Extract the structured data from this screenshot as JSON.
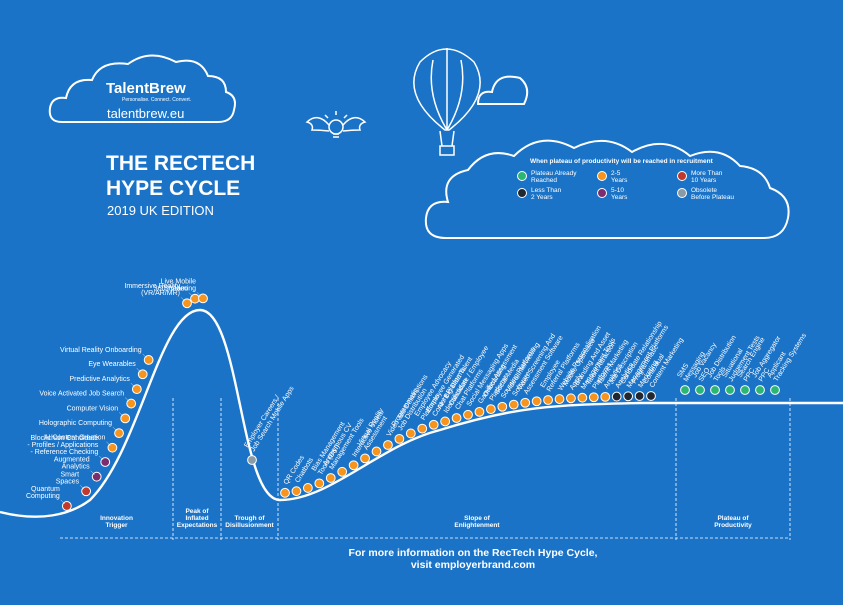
{
  "branding": {
    "logo_text": "TalentBrew",
    "tagline": "Personalise. Connect. Convert.",
    "website": "talentbrew.eu"
  },
  "title": {
    "line1": "THE RECTECH",
    "line2": "HYPE CYCLE",
    "edition": "2019 UK EDITION"
  },
  "legend": {
    "title": "When plateau of productivity will be reached in recruitment",
    "items": [
      {
        "key": "g",
        "color": "#2bb673",
        "lines": [
          "Plateau Already",
          "Reached"
        ]
      },
      {
        "key": "o",
        "color": "#f7941d",
        "lines": [
          "2-5",
          "Years"
        ]
      },
      {
        "key": "r",
        "color": "#c0392b",
        "lines": [
          "More Than",
          "10 Years"
        ]
      },
      {
        "key": "k",
        "color": "#222831",
        "lines": [
          "Less Than",
          "2 Years"
        ]
      },
      {
        "key": "p",
        "color": "#7b2d6e",
        "lines": [
          "5-10",
          "Years"
        ]
      },
      {
        "key": "x",
        "color": "#8a9aa6",
        "lines": [
          "Obsolete",
          "Before Plateau"
        ]
      }
    ]
  },
  "phases": [
    {
      "lines": [
        "Innovation",
        "Trigger"
      ]
    },
    {
      "lines": [
        "Peak of",
        "Inflated",
        "Expectations"
      ]
    },
    {
      "lines": [
        "Trough of",
        "Disillusionment"
      ]
    },
    {
      "lines": [
        "Slope of",
        "Enlightenment"
      ]
    },
    {
      "lines": [
        "Plateau of",
        "Productivity"
      ]
    }
  ],
  "left_labels": [
    {
      "lines": [
        "Quantum",
        "Computing"
      ],
      "c": "r"
    },
    {
      "lines": [
        "Smart",
        "Spaces"
      ],
      "c": "r"
    },
    {
      "lines": [
        "Augmented",
        "Analytics"
      ],
      "c": "p"
    },
    {
      "lines": [
        "Blockchain Candidate",
        "- Profiles / Applications",
        "- Reference Checking"
      ],
      "c": "p"
    },
    {
      "lines": [
        "AI Content Creation"
      ],
      "c": "o"
    },
    {
      "lines": [
        "Holographic Computing"
      ],
      "c": "o"
    },
    {
      "lines": [
        "Computer Vision"
      ],
      "c": "o"
    },
    {
      "lines": [
        "Voice Activated Job Search"
      ],
      "c": "o"
    },
    {
      "lines": [
        "Predictive Analytics"
      ],
      "c": "o"
    },
    {
      "lines": [
        "Eye Wearables"
      ],
      "c": "o"
    },
    {
      "lines": [
        "Virtual Reality Onboarding"
      ],
      "c": "o"
    },
    {
      "lines": [
        "Immersive Reality",
        "(VR/AR/MR)"
      ],
      "c": "o"
    },
    {
      "lines": [
        "360° Video"
      ],
      "c": "o"
    },
    {
      "lines": [
        "Live Mobile",
        "Streaming"
      ],
      "c": "o"
    }
  ],
  "trough_label": {
    "lines": [
      "Employer Careers /",
      "Job Search Mobile Apps"
    ],
    "c": "x"
  },
  "slope_labels": [
    {
      "lines": [
        "QR Codes"
      ],
      "c": "o"
    },
    {
      "lines": [
        "Chatbots"
      ],
      "c": "o"
    },
    {
      "lines": [],
      "c": "o"
    },
    {
      "lines": [
        "Bias Management",
        "Tools (D&I)"
      ],
      "c": "o"
    },
    {
      "lines": [
        "Anonymous CV",
        "Management Tools"
      ],
      "c": "o"
    },
    {
      "lines": [],
      "c": "o"
    },
    {
      "lines": [
        "Interactive Video"
      ],
      "c": "o"
    },
    {
      "lines": [
        "Virtual Reality",
        "Assessment"
      ],
      "c": "o"
    },
    {
      "lines": [],
      "c": "o"
    },
    {
      "lines": [
        "Video Job Descriptions"
      ],
      "c": "o"
    },
    {
      "lines": [
        "Programmatic",
        "Job Distribution"
      ],
      "c": "o"
    },
    {
      "lines": [],
      "c": "o"
    },
    {
      "lines": [
        "Employee Advocacy",
        "Platforms"
      ],
      "c": "o"
    },
    {
      "lines": [
        "Employee Generated",
        "Content Platforms"
      ],
      "c": "o"
    },
    {
      "lines": [
        "AI / Big Data Talent",
        "Identification"
      ],
      "c": "o"
    },
    {
      "lines": [
        "Candidate / Employee",
        "Chat Platforms"
      ],
      "c": "o"
    },
    {
      "lines": [
        "Social Messaging Apps"
      ],
      "c": "o"
    },
    {
      "lines": [
        "Gamified Assessment"
      ],
      "c": "o"
    },
    {
      "lines": [
        "Onboarding",
        "Platforms"
      ],
      "c": "o"
    },
    {
      "lines": [
        "Social Media",
        "Sourcing Platforms"
      ],
      "c": "o"
    },
    {
      "lines": [
        "Video Interviewing",
        "Software"
      ],
      "c": "o"
    },
    {
      "lines": [
        "Video Screening And",
        "Assessment Software"
      ],
      "c": "o"
    },
    {
      "lines": [],
      "c": "o"
    },
    {
      "lines": [
        "Employee",
        "Referral Platforms"
      ],
      "c": "o"
    },
    {
      "lines": [
        "Website Personalisation"
      ],
      "c": "o"
    },
    {
      "lines": [
        "Mobile Optimised",
        "Apply"
      ],
      "c": "o"
    },
    {
      "lines": [
        "Branding And Asset",
        "Management Tools"
      ],
      "c": "o"
    },
    {
      "lines": [
        "Talent Attraction",
        "Platforms"
      ],
      "c": "o"
    },
    {
      "lines": [
        "Talent Marketing",
        "Analytics"
      ],
      "c": "o"
    },
    {
      "lines": [
        "Job Description",
        "Analytics"
      ],
      "c": "k"
    },
    {
      "lines": [
        "Candidate Relationship",
        "Management Platforms"
      ],
      "c": "k"
    },
    {
      "lines": [
        "Programmatic",
        "Marketing"
      ],
      "c": "k"
    },
    {
      "lines": [
        "Contextual",
        "Content Marketing"
      ],
      "c": "k"
    }
  ],
  "plateau_labels": [
    {
      "lines": [
        "SMS",
        "Messaging"
      ],
      "c": "g"
    },
    {
      "lines": [
        "Job Vacancy",
        "SEO"
      ],
      "c": "g"
    },
    {
      "lines": [
        "Job Distribution",
        "Tools"
      ],
      "c": "g"
    },
    {
      "lines": [
        "Situational",
        "Judgement Tests"
      ],
      "c": "g"
    },
    {
      "lines": [
        "Search Engine",
        "PPC"
      ],
      "c": "g"
    },
    {
      "lines": [
        "Job Aggregator",
        "PPC"
      ],
      "c": "g"
    },
    {
      "lines": [
        "Applicant",
        "Tracking Systems"
      ],
      "c": "g"
    }
  ],
  "footer": {
    "line1": "For more information on the RecTech Hype Cycle,",
    "line2": "visit employerbrand.com"
  }
}
